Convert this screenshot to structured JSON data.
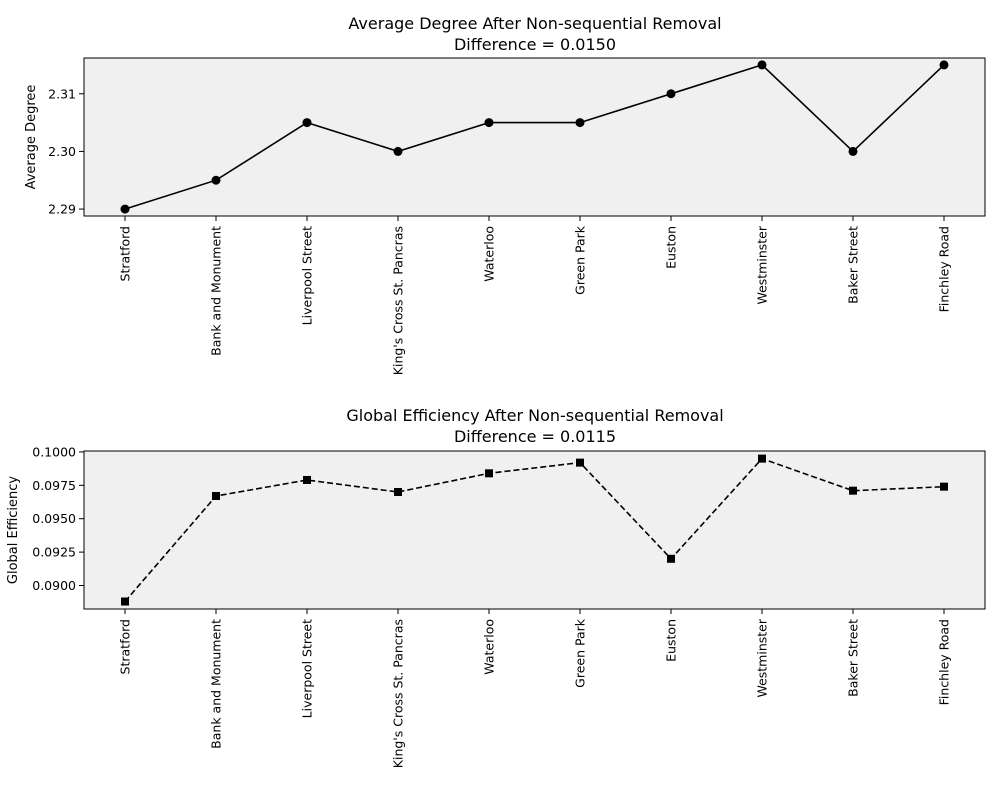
{
  "chart_data": [
    {
      "type": "line",
      "title": "Average Degree After Non-sequential Removal",
      "subtitle": "Difference = 0.0150",
      "xlabel": "",
      "ylabel": "Average Degree",
      "categories": [
        "Stratford",
        "Bank and Monument",
        "Liverpool Street",
        "King's Cross St. Pancras",
        "Waterloo",
        "Green Park",
        "Euston",
        "Westminster",
        "Baker Street",
        "Finchley Road"
      ],
      "series": [
        {
          "values": [
            2.29,
            2.295,
            2.305,
            2.3,
            2.305,
            2.305,
            2.31,
            2.315,
            2.3,
            2.315
          ],
          "color": "#000000",
          "line_style": "solid",
          "marker": "circle"
        }
      ],
      "ylim": [
        2.2888,
        2.3162
      ],
      "yticks": [
        2.29,
        2.3,
        2.31
      ],
      "ytick_labels": [
        "2.29",
        "2.30",
        "2.31"
      ],
      "background": "#f0f0f0",
      "grid": false,
      "x_tick_rotation": "vertical"
    },
    {
      "type": "line",
      "title": "Global Efficiency After Non-sequential Removal",
      "subtitle": "Difference = 0.0115",
      "xlabel": "",
      "ylabel": "Global Efficiency",
      "categories": [
        "Stratford",
        "Bank and Monument",
        "Liverpool Street",
        "King's Cross St. Pancras",
        "Waterloo",
        "Green Park",
        "Euston",
        "Westminster",
        "Baker Street",
        "Finchley Road"
      ],
      "series": [
        {
          "values": [
            0.0888,
            0.0967,
            0.0979,
            0.097,
            0.0984,
            0.0992,
            0.092,
            0.0995,
            0.0971,
            0.0974
          ],
          "color": "#000000",
          "line_style": "dashed",
          "marker": "square"
        }
      ],
      "ylim": [
        0.08824,
        0.10007
      ],
      "yticks": [
        0.09,
        0.0925,
        0.095,
        0.0975,
        0.1
      ],
      "ytick_labels": [
        "0.0900",
        "0.0925",
        "0.0950",
        "0.0975",
        "0.1000"
      ],
      "background": "#f0f0f0",
      "grid": false,
      "x_tick_rotation": "vertical"
    }
  ]
}
